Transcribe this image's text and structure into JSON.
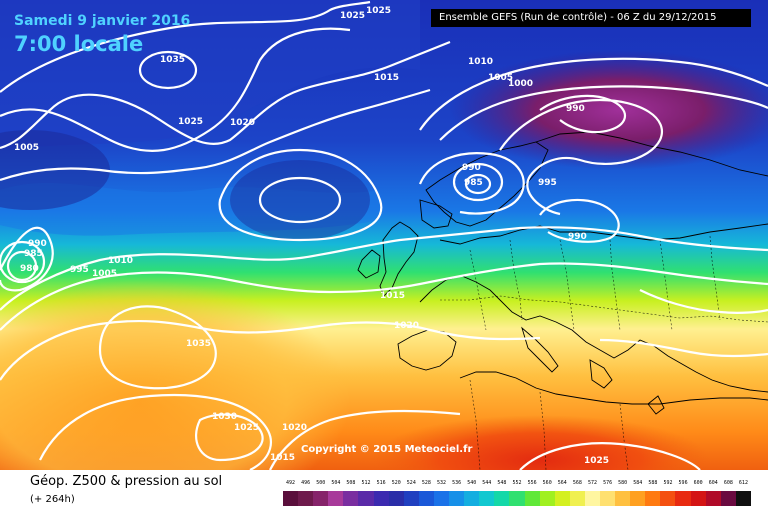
{
  "header": {
    "date": "Samedi 9 janvier 2016",
    "time": "7:00 locale",
    "run": "Ensemble GEFS  (Run de contrôle)  -  06 Z du 29/12/2015"
  },
  "footer": {
    "title": "Géop. Z500 & pression au sol",
    "lead": "(+ 264h)",
    "copyright": "Copyright © 2015 Meteociel.fr"
  },
  "scale": {
    "labels": [
      "492",
      "496",
      "500",
      "504",
      "508",
      "512",
      "516",
      "520",
      "524",
      "528",
      "532",
      "536",
      "540",
      "544",
      "548",
      "552",
      "556",
      "560",
      "564",
      "568",
      "572",
      "576",
      "580",
      "584",
      "588",
      "592",
      "596",
      "600",
      "604",
      "608",
      "612"
    ],
    "colors": [
      "#5a0f3c",
      "#6e1a4c",
      "#86236a",
      "#a83a9a",
      "#7a2ea0",
      "#5a2aa8",
      "#3b2ab0",
      "#2a2ea8",
      "#2040c0",
      "#1a58d8",
      "#1a72e8",
      "#1690e8",
      "#14aee0",
      "#12c8d0",
      "#14d8a8",
      "#30e070",
      "#60e838",
      "#a0f020",
      "#d4f020",
      "#f0f050",
      "#fff6a0",
      "#ffe070",
      "#ffc040",
      "#ffa020",
      "#ff7a10",
      "#f45010",
      "#e82a10",
      "#d41414",
      "#b00a28",
      "#6a0a40",
      "#101010"
    ]
  },
  "isobar_labels": [
    {
      "text": "1025"
    },
    {
      "text": "1025"
    },
    {
      "text": "1035"
    },
    {
      "text": "1025"
    },
    {
      "text": "1020"
    },
    {
      "text": "1005"
    },
    {
      "text": "1015"
    },
    {
      "text": "1010"
    },
    {
      "text": "1005"
    },
    {
      "text": "1000"
    },
    {
      "text": "990"
    },
    {
      "text": "990"
    },
    {
      "text": "985"
    },
    {
      "text": "995"
    },
    {
      "text": "990"
    },
    {
      "text": "990"
    },
    {
      "text": "985"
    },
    {
      "text": "980"
    },
    {
      "text": "995"
    },
    {
      "text": "1010"
    },
    {
      "text": "1005"
    },
    {
      "text": "1015"
    },
    {
      "text": "1020"
    },
    {
      "text": "1035"
    },
    {
      "text": "1030"
    },
    {
      "text": "1025"
    },
    {
      "text": "1020"
    },
    {
      "text": "1015"
    },
    {
      "text": "1025"
    }
  ]
}
